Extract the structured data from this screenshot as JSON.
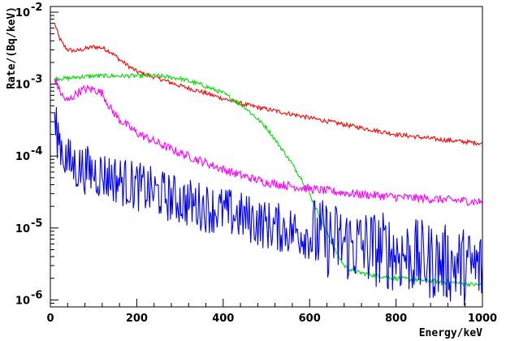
{
  "chart_data": {
    "type": "line",
    "title": "",
    "xlabel": "Energy/keV",
    "ylabel": "Rate/(Bq/keV)",
    "xlim": [
      0,
      1000
    ],
    "ylim": [
      8e-07,
      0.012
    ],
    "yscale": "log",
    "grid": false,
    "x_ticks": [
      {
        "value": 0,
        "label": "0"
      },
      {
        "value": 200,
        "label": "200"
      },
      {
        "value": 400,
        "label": "400"
      },
      {
        "value": 600,
        "label": "600"
      },
      {
        "value": 800,
        "label": "800"
      },
      {
        "value": 1000,
        "label": "1000"
      }
    ],
    "y_ticks": [
      {
        "value": 0.01,
        "mantissa": "10",
        "exponent": "-2"
      },
      {
        "value": 0.001,
        "mantissa": "10",
        "exponent": "-3"
      },
      {
        "value": 0.0001,
        "mantissa": "10",
        "exponent": "-4"
      },
      {
        "value": 1e-05,
        "mantissa": "10",
        "exponent": "-5"
      },
      {
        "value": 1e-06,
        "mantissa": "10",
        "exponent": "-6"
      }
    ],
    "series": [
      {
        "color": "#ff0000",
        "x": [
          10,
          20,
          30,
          40,
          60,
          80,
          100,
          120,
          140,
          160,
          180,
          200,
          250,
          300,
          350,
          400,
          450,
          500,
          600,
          700,
          800,
          900,
          1000
        ],
        "y": [
          0.007,
          0.0045,
          0.0035,
          0.003,
          0.0029,
          0.0031,
          0.0033,
          0.0032,
          0.0028,
          0.0022,
          0.0018,
          0.0015,
          0.0012,
          0.00095,
          0.00078,
          0.00063,
          0.00052,
          0.00045,
          0.00034,
          0.00026,
          0.0002,
          0.00017,
          0.00015
        ]
      },
      {
        "color": "#00dd00",
        "x": [
          10,
          20,
          40,
          60,
          100,
          150,
          200,
          250,
          300,
          350,
          400,
          450,
          500,
          520,
          550,
          580,
          600,
          620,
          640,
          660,
          680,
          700,
          750,
          800,
          850,
          900,
          950,
          1000
        ],
        "y": [
          0.0012,
          0.0012,
          0.0012,
          0.00125,
          0.0013,
          0.0013,
          0.0013,
          0.0013,
          0.0012,
          0.00098,
          0.00075,
          0.00048,
          0.00025,
          0.00017,
          9.5e-05,
          5e-05,
          3e-05,
          1.6e-05,
          8.5e-06,
          4.8e-06,
          3e-06,
          2.5e-06,
          2.2e-06,
          2e-06,
          1.9e-06,
          1.8e-06,
          1.7e-06,
          1.6e-06
        ]
      },
      {
        "color": "#ff00ff",
        "x": [
          10,
          20,
          30,
          40,
          50,
          60,
          80,
          100,
          120,
          140,
          160,
          180,
          200,
          250,
          300,
          350,
          400,
          450,
          500,
          600,
          700,
          800,
          900,
          1000
        ],
        "y": [
          0.0012,
          0.00085,
          0.00065,
          0.00058,
          0.00065,
          0.00075,
          0.00085,
          0.00085,
          0.00075,
          0.00045,
          0.00032,
          0.00026,
          0.00021,
          0.00015,
          0.00011,
          8.5e-05,
          6.5e-05,
          5.2e-05,
          4.3e-05,
          3.5e-05,
          3e-05,
          2.7e-05,
          2.5e-05,
          2.3e-05
        ]
      },
      {
        "color": "#0000ff",
        "x": [
          10,
          20,
          30,
          40,
          60,
          80,
          100,
          120,
          150,
          200,
          250,
          300,
          350,
          400,
          450,
          500,
          550,
          600,
          650,
          700,
          750,
          800,
          850,
          900,
          950,
          1000
        ],
        "y": [
          0.00025,
          0.00018,
          0.00011,
          8.5e-05,
          7e-05,
          6.5e-05,
          6e-05,
          5.5e-05,
          4.8e-05,
          3.8e-05,
          3e-05,
          2.4e-05,
          2e-05,
          1.7e-05,
          1.4e-05,
          1.1e-05,
          9.5e-06,
          8e-06,
          6.8e-06,
          5.8e-06,
          5.2e-06,
          4.5e-06,
          3.8e-06,
          3.3e-06,
          3e-06,
          2.7e-06
        ]
      }
    ]
  }
}
